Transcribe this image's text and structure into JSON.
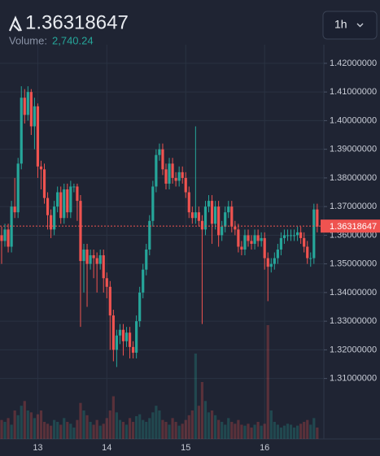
{
  "chart_data": {
    "type": "candlestick",
    "title": "1.36318647",
    "volume_label": "Volume:",
    "volume_value": "2,740.24",
    "interval": "1h",
    "up_color": "#26a69a",
    "down_color": "#ef5350",
    "grid": true,
    "last_price": {
      "value": 1.36318647,
      "label": "1.36318647"
    },
    "ylim": [
      1.2889,
      1.4265
    ],
    "yticks": [
      {
        "value": 1.42,
        "label": "1.42000000"
      },
      {
        "value": 1.41,
        "label": "1.41000000"
      },
      {
        "value": 1.4,
        "label": "1.40000000"
      },
      {
        "value": 1.39,
        "label": "1.39000000"
      },
      {
        "value": 1.38,
        "label": "1.38000000"
      },
      {
        "value": 1.37,
        "label": "1.37000000"
      },
      {
        "value": 1.36,
        "label": "1.36000000"
      },
      {
        "value": 1.35,
        "label": "1.35000000"
      },
      {
        "value": 1.34,
        "label": "1.34000000"
      },
      {
        "value": 1.33,
        "label": "1.33000000"
      },
      {
        "value": 1.32,
        "label": "1.32000000"
      },
      {
        "value": 1.31,
        "label": "1.31000000"
      }
    ],
    "xticks": [
      {
        "value": 11,
        "label": "13"
      },
      {
        "value": 32,
        "label": "14"
      },
      {
        "value": 56,
        "label": "15"
      },
      {
        "value": 80,
        "label": "16"
      }
    ],
    "open": [
      1.36,
      1.358,
      1.362,
      1.356,
      1.37,
      1.368,
      1.385,
      1.408,
      1.402,
      1.41,
      1.398,
      1.405,
      1.384,
      1.383,
      1.373,
      1.367,
      1.362,
      1.37,
      1.375,
      1.366,
      1.376,
      1.368,
      1.377,
      1.377,
      1.372,
      1.351,
      1.355,
      1.35,
      1.353,
      1.352,
      1.35,
      1.353,
      1.345,
      1.342,
      1.332,
      1.32,
      1.325,
      1.327,
      1.323,
      1.326,
      1.321,
      1.319,
      1.33,
      1.34,
      1.348,
      1.355,
      1.365,
      1.377,
      1.388,
      1.39,
      1.383,
      1.378,
      1.385,
      1.38,
      1.379,
      1.382,
      1.38,
      1.375,
      1.368,
      1.366,
      1.368,
      1.365,
      1.362,
      1.37,
      1.372,
      1.364,
      1.37,
      1.36,
      1.363,
      1.368,
      1.37,
      1.363,
      1.362,
      1.356,
      1.355,
      1.36,
      1.358,
      1.357,
      1.36,
      1.358,
      1.359,
      1.352,
      1.349,
      1.35,
      1.352,
      1.355,
      1.359,
      1.36,
      1.36,
      1.36,
      1.36,
      1.361,
      1.359,
      1.356,
      1.352,
      1.352,
      1.369
    ],
    "high": [
      1.363,
      1.364,
      1.364,
      1.372,
      1.38,
      1.387,
      1.412,
      1.411,
      1.412,
      1.411,
      1.408,
      1.406,
      1.386,
      1.385,
      1.375,
      1.369,
      1.372,
      1.377,
      1.377,
      1.378,
      1.378,
      1.379,
      1.378,
      1.378,
      1.374,
      1.357,
      1.357,
      1.355,
      1.355,
      1.354,
      1.355,
      1.355,
      1.347,
      1.344,
      1.334,
      1.327,
      1.329,
      1.329,
      1.328,
      1.328,
      1.323,
      1.332,
      1.342,
      1.35,
      1.357,
      1.367,
      1.379,
      1.39,
      1.392,
      1.392,
      1.385,
      1.387,
      1.387,
      1.382,
      1.384,
      1.384,
      1.382,
      1.377,
      1.37,
      1.398,
      1.37,
      1.367,
      1.372,
      1.374,
      1.374,
      1.372,
      1.372,
      1.365,
      1.37,
      1.372,
      1.372,
      1.365,
      1.364,
      1.358,
      1.362,
      1.362,
      1.36,
      1.362,
      1.362,
      1.361,
      1.361,
      1.354,
      1.352,
      1.354,
      1.357,
      1.361,
      1.362,
      1.362,
      1.362,
      1.362,
      1.363,
      1.363,
      1.361,
      1.358,
      1.354,
      1.371,
      1.371
    ],
    "low": [
      1.35,
      1.356,
      1.354,
      1.354,
      1.366,
      1.366,
      1.383,
      1.399,
      1.4,
      1.395,
      1.39,
      1.38,
      1.376,
      1.371,
      1.362,
      1.359,
      1.36,
      1.368,
      1.364,
      1.364,
      1.366,
      1.366,
      1.375,
      1.365,
      1.328,
      1.34,
      1.335,
      1.348,
      1.345,
      1.34,
      1.348,
      1.34,
      1.338,
      1.32,
      1.316,
      1.314,
      1.322,
      1.318,
      1.321,
      1.317,
      1.317,
      1.317,
      1.328,
      1.338,
      1.346,
      1.353,
      1.363,
      1.375,
      1.386,
      1.381,
      1.376,
      1.376,
      1.378,
      1.377,
      1.377,
      1.378,
      1.373,
      1.366,
      1.364,
      1.364,
      1.363,
      1.329,
      1.36,
      1.368,
      1.357,
      1.362,
      1.356,
      1.358,
      1.361,
      1.366,
      1.361,
      1.36,
      1.354,
      1.353,
      1.353,
      1.356,
      1.355,
      1.355,
      1.356,
      1.356,
      1.348,
      1.337,
      1.347,
      1.348,
      1.35,
      1.353,
      1.357,
      1.358,
      1.358,
      1.358,
      1.358,
      1.357,
      1.354,
      1.35,
      1.349,
      1.35,
      1.361
    ],
    "close": [
      1.358,
      1.362,
      1.356,
      1.37,
      1.368,
      1.385,
      1.408,
      1.402,
      1.41,
      1.398,
      1.405,
      1.384,
      1.383,
      1.373,
      1.367,
      1.362,
      1.37,
      1.375,
      1.366,
      1.376,
      1.368,
      1.377,
      1.377,
      1.372,
      1.351,
      1.355,
      1.35,
      1.353,
      1.352,
      1.35,
      1.353,
      1.345,
      1.342,
      1.332,
      1.32,
      1.325,
      1.327,
      1.323,
      1.326,
      1.321,
      1.319,
      1.33,
      1.34,
      1.348,
      1.355,
      1.365,
      1.377,
      1.388,
      1.39,
      1.383,
      1.378,
      1.385,
      1.38,
      1.379,
      1.382,
      1.38,
      1.375,
      1.368,
      1.366,
      1.368,
      1.365,
      1.362,
      1.37,
      1.372,
      1.364,
      1.37,
      1.36,
      1.363,
      1.368,
      1.37,
      1.363,
      1.362,
      1.356,
      1.355,
      1.36,
      1.358,
      1.357,
      1.36,
      1.358,
      1.359,
      1.352,
      1.349,
      1.35,
      1.352,
      1.355,
      1.359,
      1.36,
      1.36,
      1.36,
      1.36,
      1.361,
      1.359,
      1.356,
      1.352,
      1.352,
      1.369,
      1.363
    ],
    "volume": [
      20,
      18,
      22,
      15,
      30,
      25,
      35,
      40,
      30,
      28,
      22,
      26,
      30,
      18,
      16,
      14,
      20,
      18,
      15,
      22,
      18,
      16,
      12,
      20,
      38,
      30,
      25,
      18,
      15,
      20,
      14,
      16,
      22,
      30,
      45,
      28,
      20,
      18,
      15,
      22,
      18,
      24,
      26,
      20,
      18,
      22,
      28,
      35,
      30,
      20,
      18,
      15,
      22,
      18,
      14,
      16,
      20,
      25,
      30,
      90,
      35,
      60,
      40,
      28,
      30,
      25,
      20,
      18,
      15,
      22,
      18,
      16,
      20,
      15,
      14,
      16,
      12,
      15,
      18,
      14,
      16,
      120,
      30,
      18,
      15,
      12,
      14,
      16,
      15,
      12,
      14,
      16,
      18,
      20,
      15,
      22,
      12
    ]
  }
}
